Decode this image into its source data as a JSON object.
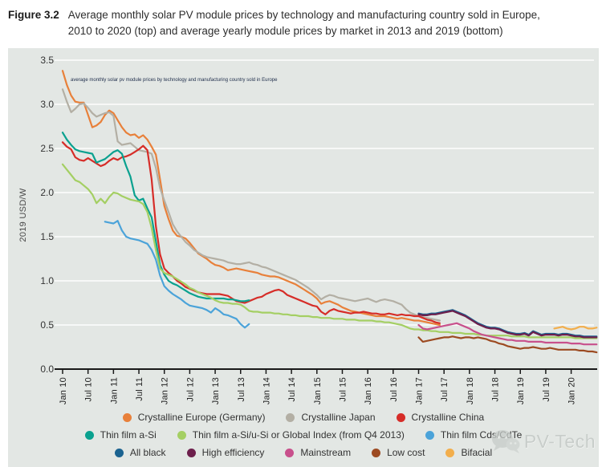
{
  "figure": {
    "label": "Figure 3.2",
    "caption_line1": "Average monthly solar PV module prices by technology and manufacturing country sold in Europe,",
    "caption_line2": "2010 to 2020 (top) and average yearly module prices by market in 2013 and 2019 (bottom)"
  },
  "watermark": {
    "brand": "PV-Tech"
  },
  "chart_data": {
    "type": "line",
    "annotation": "average monthly solar pv module prices by technology and manufacturing country sold in Europe",
    "ylabel": "2019 USD/W",
    "ylim": [
      0.0,
      3.5
    ],
    "ytick_labels": [
      "0.0",
      "0.5",
      "1.0",
      "1.5",
      "2.0",
      "2.5",
      "3.0",
      "3.5"
    ],
    "yticks": [
      0.0,
      0.5,
      1.0,
      1.5,
      2.0,
      2.5,
      3.0,
      3.5
    ],
    "x_unit": "months_since_jan_2010",
    "xlim": [
      0,
      127
    ],
    "xtick_interval_months": 6,
    "xtick_labels": [
      "Jan 10",
      "Jul 10",
      "Jan 11",
      "Jul 11",
      "Jan 12",
      "Jul 12",
      "Jan 13",
      "Jul 13",
      "Jan 14",
      "Jul 14",
      "Jan 15",
      "Jul 15",
      "Jan 16",
      "Jul 16",
      "Jan 17",
      "Jul 17",
      "Jan 18",
      "Jul 18",
      "Jan 19",
      "Jul 19",
      "Jan 20"
    ],
    "grid": "horizontal white gridlines on light grey panel",
    "legend_position": "bottom",
    "panel_color": "#e3e7e4",
    "legend_rows": [
      [
        0,
        1,
        2
      ],
      [
        3,
        4,
        5
      ],
      [
        6,
        7,
        8,
        9,
        10
      ]
    ],
    "series": [
      {
        "name": "Crystalline Europe (Germany)",
        "color": "#e8803a",
        "start_month": 0,
        "values": [
          3.38,
          3.22,
          3.1,
          3.03,
          3.02,
          3.02,
          2.88,
          2.74,
          2.76,
          2.8,
          2.88,
          2.93,
          2.9,
          2.82,
          2.74,
          2.68,
          2.65,
          2.66,
          2.62,
          2.65,
          2.6,
          2.52,
          2.43,
          2.15,
          1.85,
          1.7,
          1.57,
          1.51,
          1.5,
          1.48,
          1.43,
          1.37,
          1.31,
          1.28,
          1.25,
          1.21,
          1.18,
          1.17,
          1.15,
          1.12,
          1.13,
          1.14,
          1.13,
          1.12,
          1.11,
          1.1,
          1.09,
          1.07,
          1.06,
          1.05,
          1.05,
          1.04,
          1.02,
          1.0,
          0.98,
          0.96,
          0.93,
          0.9,
          0.87,
          0.84,
          0.8,
          0.74,
          0.76,
          0.77,
          0.75,
          0.73,
          0.7,
          0.68,
          0.66,
          0.65,
          0.64,
          0.63,
          0.62,
          0.61,
          0.6,
          0.6,
          0.6,
          0.59,
          0.58,
          0.57,
          0.58,
          0.57,
          0.56,
          0.55,
          0.55,
          0.54,
          0.53,
          0.52,
          0.51,
          0.5
        ]
      },
      {
        "name": "Crystalline Japan",
        "color": "#b3afa4",
        "start_month": 0,
        "values": [
          3.17,
          3.03,
          2.91,
          2.95,
          3.0,
          3.01,
          2.96,
          2.9,
          2.86,
          2.88,
          2.9,
          2.91,
          2.87,
          2.58,
          2.54,
          2.55,
          2.56,
          2.52,
          2.48,
          2.47,
          2.46,
          2.44,
          2.28,
          2.05,
          1.91,
          1.78,
          1.64,
          1.56,
          1.5,
          1.44,
          1.4,
          1.35,
          1.32,
          1.29,
          1.27,
          1.26,
          1.25,
          1.24,
          1.23,
          1.21,
          1.2,
          1.19,
          1.19,
          1.2,
          1.21,
          1.19,
          1.18,
          1.16,
          1.15,
          1.13,
          1.11,
          1.09,
          1.07,
          1.05,
          1.03,
          1.01,
          0.98,
          0.95,
          0.92,
          0.88,
          0.84,
          0.79,
          0.82,
          0.84,
          0.83,
          0.81,
          0.8,
          0.79,
          0.78,
          0.77,
          0.78,
          0.79,
          0.8,
          0.78,
          0.76,
          0.78,
          0.79,
          0.78,
          0.77,
          0.75,
          0.73,
          0.68,
          0.64,
          0.62,
          0.6,
          0.59,
          0.58,
          0.57,
          0.56,
          0.55
        ]
      },
      {
        "name": "Crystalline China",
        "color": "#d62d28",
        "start_month": 0,
        "values": [
          2.57,
          2.52,
          2.49,
          2.4,
          2.37,
          2.36,
          2.39,
          2.36,
          2.33,
          2.3,
          2.32,
          2.36,
          2.39,
          2.37,
          2.4,
          2.41,
          2.43,
          2.46,
          2.49,
          2.53,
          2.48,
          2.15,
          1.62,
          1.3,
          1.14,
          1.09,
          1.05,
          1.0,
          0.97,
          0.93,
          0.91,
          0.89,
          0.87,
          0.86,
          0.85,
          0.85,
          0.85,
          0.85,
          0.84,
          0.83,
          0.8,
          0.77,
          0.76,
          0.75,
          0.77,
          0.79,
          0.81,
          0.82,
          0.85,
          0.87,
          0.89,
          0.9,
          0.88,
          0.84,
          0.82,
          0.8,
          0.78,
          0.76,
          0.74,
          0.72,
          0.71,
          0.65,
          0.62,
          0.66,
          0.68,
          0.66,
          0.65,
          0.64,
          0.63,
          0.64,
          0.64,
          0.65,
          0.64,
          0.63,
          0.63,
          0.62,
          0.62,
          0.63,
          0.62,
          0.61,
          0.62,
          0.61,
          0.61,
          0.6,
          0.6,
          0.58,
          0.56,
          0.55,
          0.53,
          0.52
        ]
      },
      {
        "name": "Thin film a-Si",
        "color": "#0aa18f",
        "start_month": 0,
        "values": [
          2.68,
          2.6,
          2.54,
          2.49,
          2.47,
          2.46,
          2.45,
          2.44,
          2.34,
          2.36,
          2.38,
          2.42,
          2.46,
          2.48,
          2.44,
          2.3,
          2.18,
          1.97,
          1.91,
          1.93,
          1.82,
          1.72,
          1.45,
          1.18,
          1.07,
          1.0,
          0.97,
          0.95,
          0.92,
          0.89,
          0.86,
          0.84,
          0.82,
          0.81,
          0.8,
          0.8,
          0.8,
          0.8,
          0.8,
          0.79,
          0.79,
          0.78,
          0.77,
          0.77,
          0.78
        ]
      },
      {
        "name": "Thin film a-Si/u-Si or Global Index (from Q4 2013)",
        "color": "#a4cf63",
        "start_month": 0,
        "values": [
          2.32,
          2.26,
          2.2,
          2.14,
          2.12,
          2.08,
          2.04,
          1.98,
          1.88,
          1.93,
          1.88,
          1.95,
          2.0,
          1.99,
          1.96,
          1.94,
          1.92,
          1.91,
          1.9,
          1.87,
          1.78,
          1.6,
          1.35,
          1.14,
          1.09,
          1.07,
          1.05,
          1.02,
          0.99,
          0.96,
          0.92,
          0.9,
          0.87,
          0.85,
          0.83,
          0.81,
          0.78,
          0.76,
          0.75,
          0.75,
          0.74,
          0.74,
          0.73,
          0.7,
          0.66,
          0.65,
          0.65,
          0.64,
          0.64,
          0.64,
          0.63,
          0.63,
          0.62,
          0.62,
          0.61,
          0.61,
          0.6,
          0.6,
          0.6,
          0.59,
          0.59,
          0.58,
          0.58,
          0.58,
          0.57,
          0.57,
          0.57,
          0.56,
          0.56,
          0.56,
          0.55,
          0.55,
          0.55,
          0.55,
          0.54,
          0.54,
          0.53,
          0.53,
          0.52,
          0.51,
          0.5,
          0.48,
          0.46,
          0.45,
          0.45,
          0.44,
          0.44,
          0.43,
          0.43,
          0.42,
          0.42,
          0.42,
          0.41,
          0.41,
          0.41,
          0.4,
          0.4,
          0.4,
          0.39,
          0.39,
          0.38,
          0.38,
          0.38,
          0.38,
          0.38,
          0.38,
          0.37,
          0.37,
          0.37,
          0.37,
          0.36,
          0.36,
          0.36,
          0.36,
          0.36,
          0.36,
          0.36,
          0.36,
          0.36,
          0.36,
          0.36,
          0.35,
          0.35,
          0.35,
          0.35,
          0.35,
          0.35
        ]
      },
      {
        "name": "Thin film Cds/CdTe",
        "color": "#4ba3d9",
        "start_month": 10,
        "values": [
          1.67,
          1.66,
          1.65,
          1.68,
          1.57,
          1.5,
          1.48,
          1.47,
          1.46,
          1.44,
          1.42,
          1.35,
          1.24,
          1.06,
          0.94,
          0.89,
          0.85,
          0.82,
          0.79,
          0.75,
          0.72,
          0.71,
          0.7,
          0.69,
          0.67,
          0.64,
          0.69,
          0.66,
          0.62,
          0.61,
          0.59,
          0.57,
          0.51,
          0.47,
          0.51
        ]
      },
      {
        "name": "All black",
        "color": "#1b6390",
        "start_month": 84,
        "values": [
          0.63,
          0.62,
          0.62,
          0.63,
          0.63,
          0.64,
          0.65,
          0.66,
          0.67,
          0.65,
          0.63,
          0.61,
          0.58,
          0.55,
          0.52,
          0.5,
          0.48,
          0.47,
          0.47,
          0.46,
          0.44,
          0.42,
          0.41,
          0.4,
          0.4,
          0.41,
          0.39,
          0.43,
          0.41,
          0.39,
          0.4,
          0.4,
          0.4,
          0.39,
          0.4,
          0.4,
          0.39,
          0.38,
          0.38,
          0.37,
          0.37,
          0.37,
          0.37
        ]
      },
      {
        "name": "High efficiency",
        "color": "#6d1f4c",
        "start_month": 84,
        "values": [
          0.62,
          0.61,
          0.61,
          0.62,
          0.62,
          0.63,
          0.64,
          0.65,
          0.66,
          0.64,
          0.62,
          0.6,
          0.57,
          0.54,
          0.51,
          0.49,
          0.47,
          0.46,
          0.46,
          0.45,
          0.43,
          0.41,
          0.4,
          0.39,
          0.39,
          0.4,
          0.38,
          0.42,
          0.4,
          0.38,
          0.39,
          0.39,
          0.39,
          0.38,
          0.39,
          0.39,
          0.38,
          0.37,
          0.37,
          0.36,
          0.36,
          0.36,
          0.36
        ]
      },
      {
        "name": "Mainstream",
        "color": "#c8508c",
        "start_month": 84,
        "values": [
          0.5,
          0.46,
          0.45,
          0.46,
          0.47,
          0.48,
          0.49,
          0.5,
          0.51,
          0.52,
          0.5,
          0.48,
          0.46,
          0.43,
          0.41,
          0.39,
          0.38,
          0.37,
          0.36,
          0.35,
          0.34,
          0.33,
          0.33,
          0.32,
          0.32,
          0.32,
          0.31,
          0.31,
          0.31,
          0.31,
          0.3,
          0.3,
          0.3,
          0.3,
          0.3,
          0.3,
          0.29,
          0.29,
          0.29,
          0.28,
          0.28,
          0.28,
          0.28
        ]
      },
      {
        "name": "Low cost",
        "color": "#9c4a21",
        "start_month": 84,
        "values": [
          0.36,
          0.31,
          0.32,
          0.33,
          0.34,
          0.35,
          0.36,
          0.36,
          0.37,
          0.36,
          0.35,
          0.36,
          0.36,
          0.35,
          0.36,
          0.35,
          0.34,
          0.32,
          0.31,
          0.29,
          0.28,
          0.26,
          0.25,
          0.24,
          0.23,
          0.24,
          0.24,
          0.25,
          0.24,
          0.23,
          0.23,
          0.24,
          0.23,
          0.22,
          0.22,
          0.22,
          0.22,
          0.22,
          0.21,
          0.21,
          0.2,
          0.2,
          0.19
        ]
      },
      {
        "name": "Bifacial",
        "color": "#f2ae4c",
        "start_month": 116,
        "values": [
          0.46,
          0.47,
          0.48,
          0.46,
          0.45,
          0.46,
          0.48,
          0.48,
          0.46,
          0.46,
          0.47
        ]
      }
    ]
  }
}
